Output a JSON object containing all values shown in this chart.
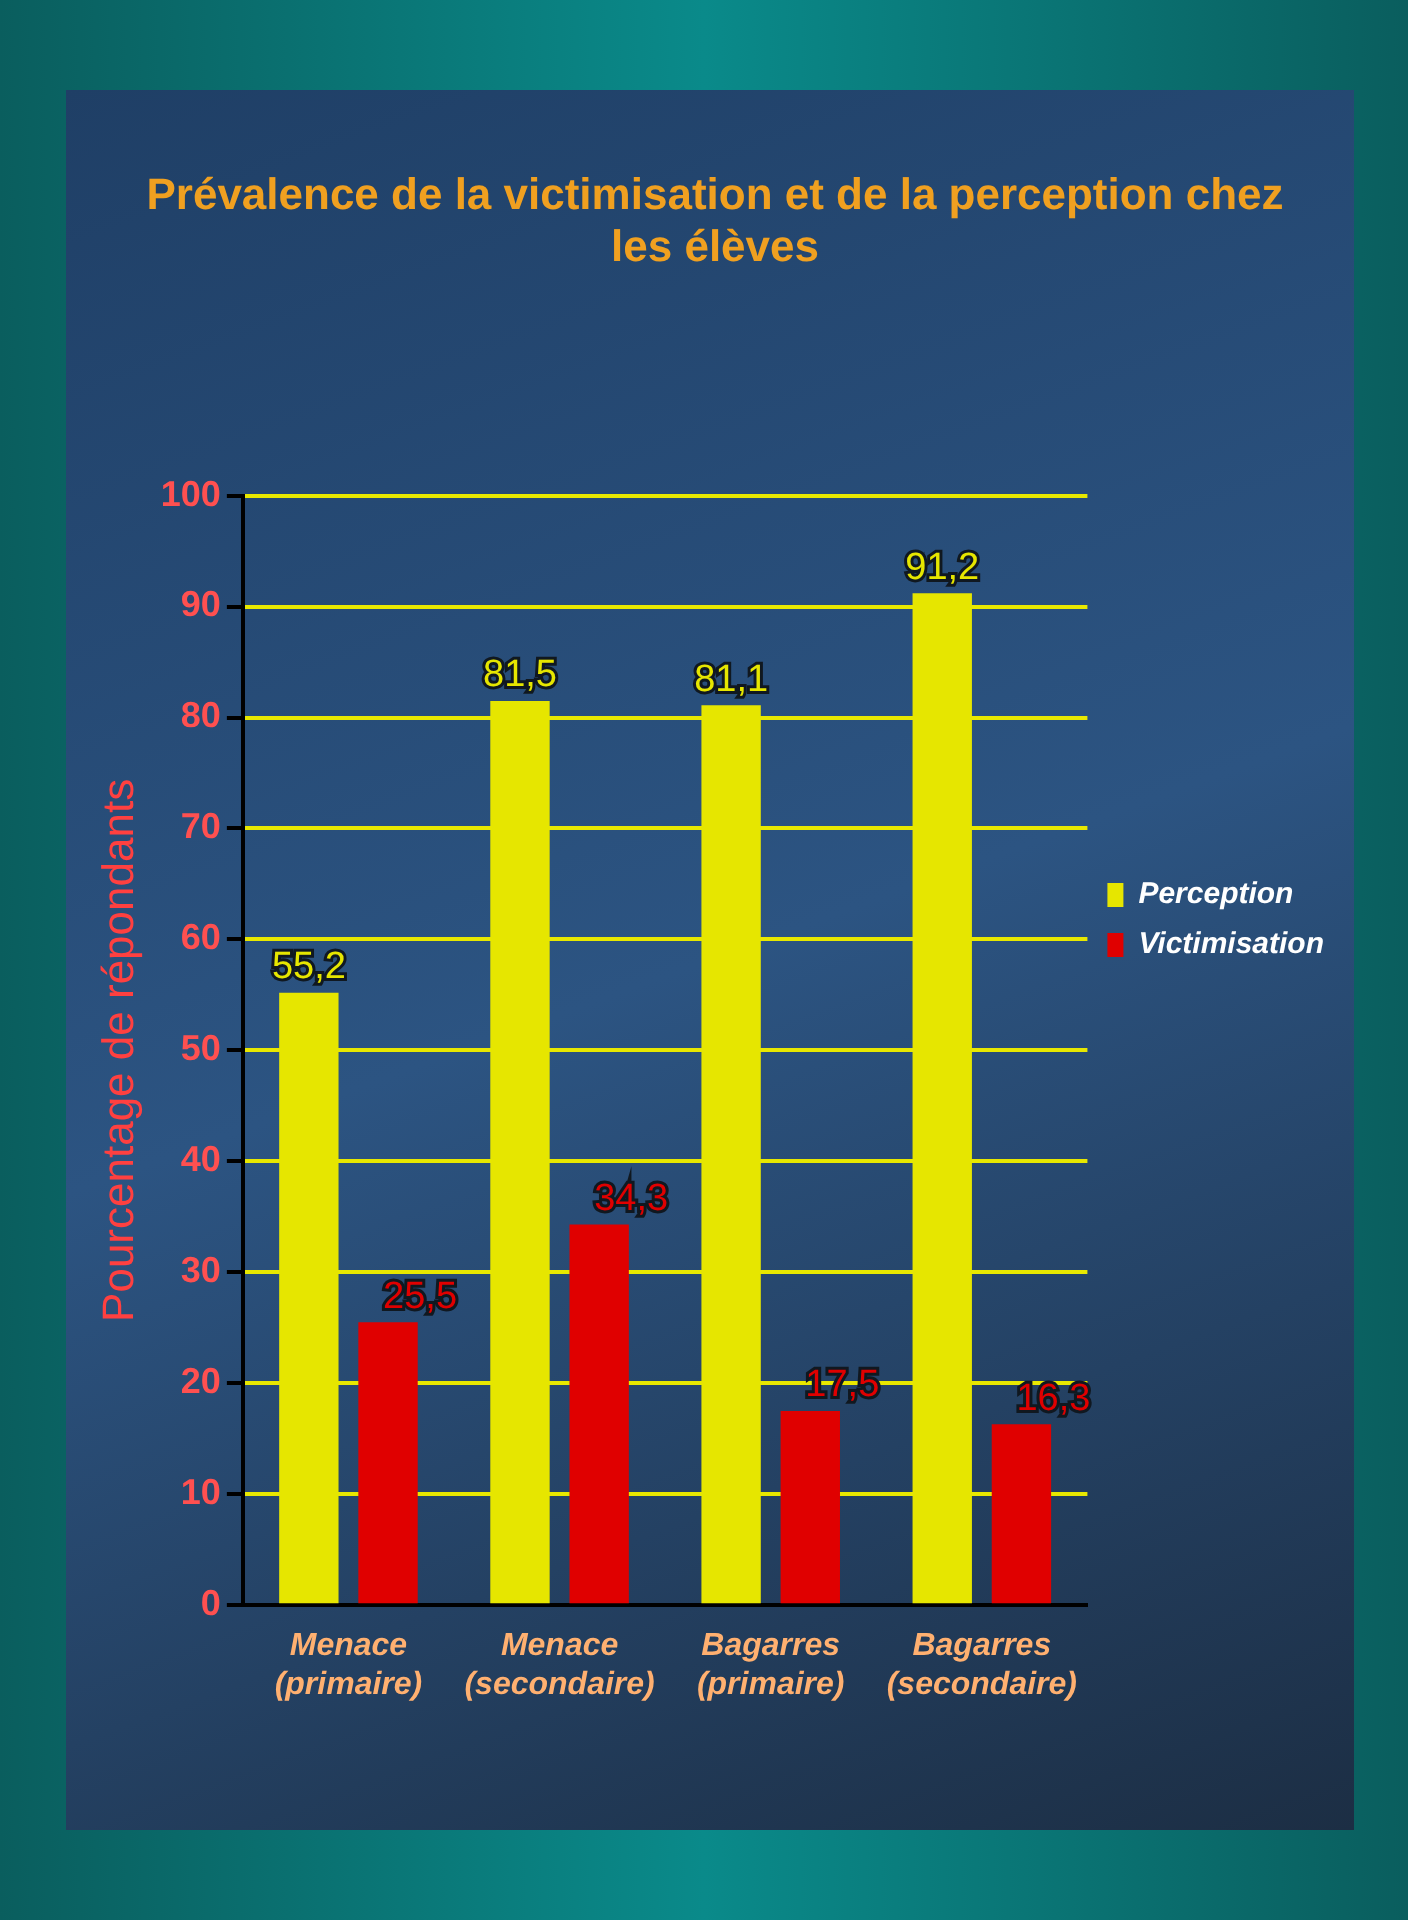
{
  "chart_data": {
    "type": "bar",
    "title": "Prévalence de la victimisation et de la perception chez les élèves",
    "ylabel": "Pourcentage de répondants",
    "categories": [
      "Menace (primaire)",
      "Menace (secondaire)",
      "Bagarres (primaire)",
      "Bagarres (secondaire)"
    ],
    "series": [
      {
        "name": "Perception",
        "color": "#e6e600",
        "values": [
          55.2,
          81.5,
          81.1,
          91.2
        ],
        "value_labels": [
          "55,2",
          "81,5",
          "81,1",
          "91,2"
        ]
      },
      {
        "name": "Victimisation",
        "color": "#e00000",
        "values": [
          25.5,
          34.3,
          17.5,
          16.3
        ],
        "value_labels": [
          "25,5",
          "34,3",
          "17,5",
          "16,3"
        ]
      }
    ],
    "ylim": [
      0,
      100
    ],
    "yticks": [
      0,
      10,
      20,
      30,
      40,
      50,
      60,
      70,
      80,
      90,
      {
        "value": 100,
        "label": "100"
      }
    ],
    "grid": "y",
    "legend": "right"
  }
}
